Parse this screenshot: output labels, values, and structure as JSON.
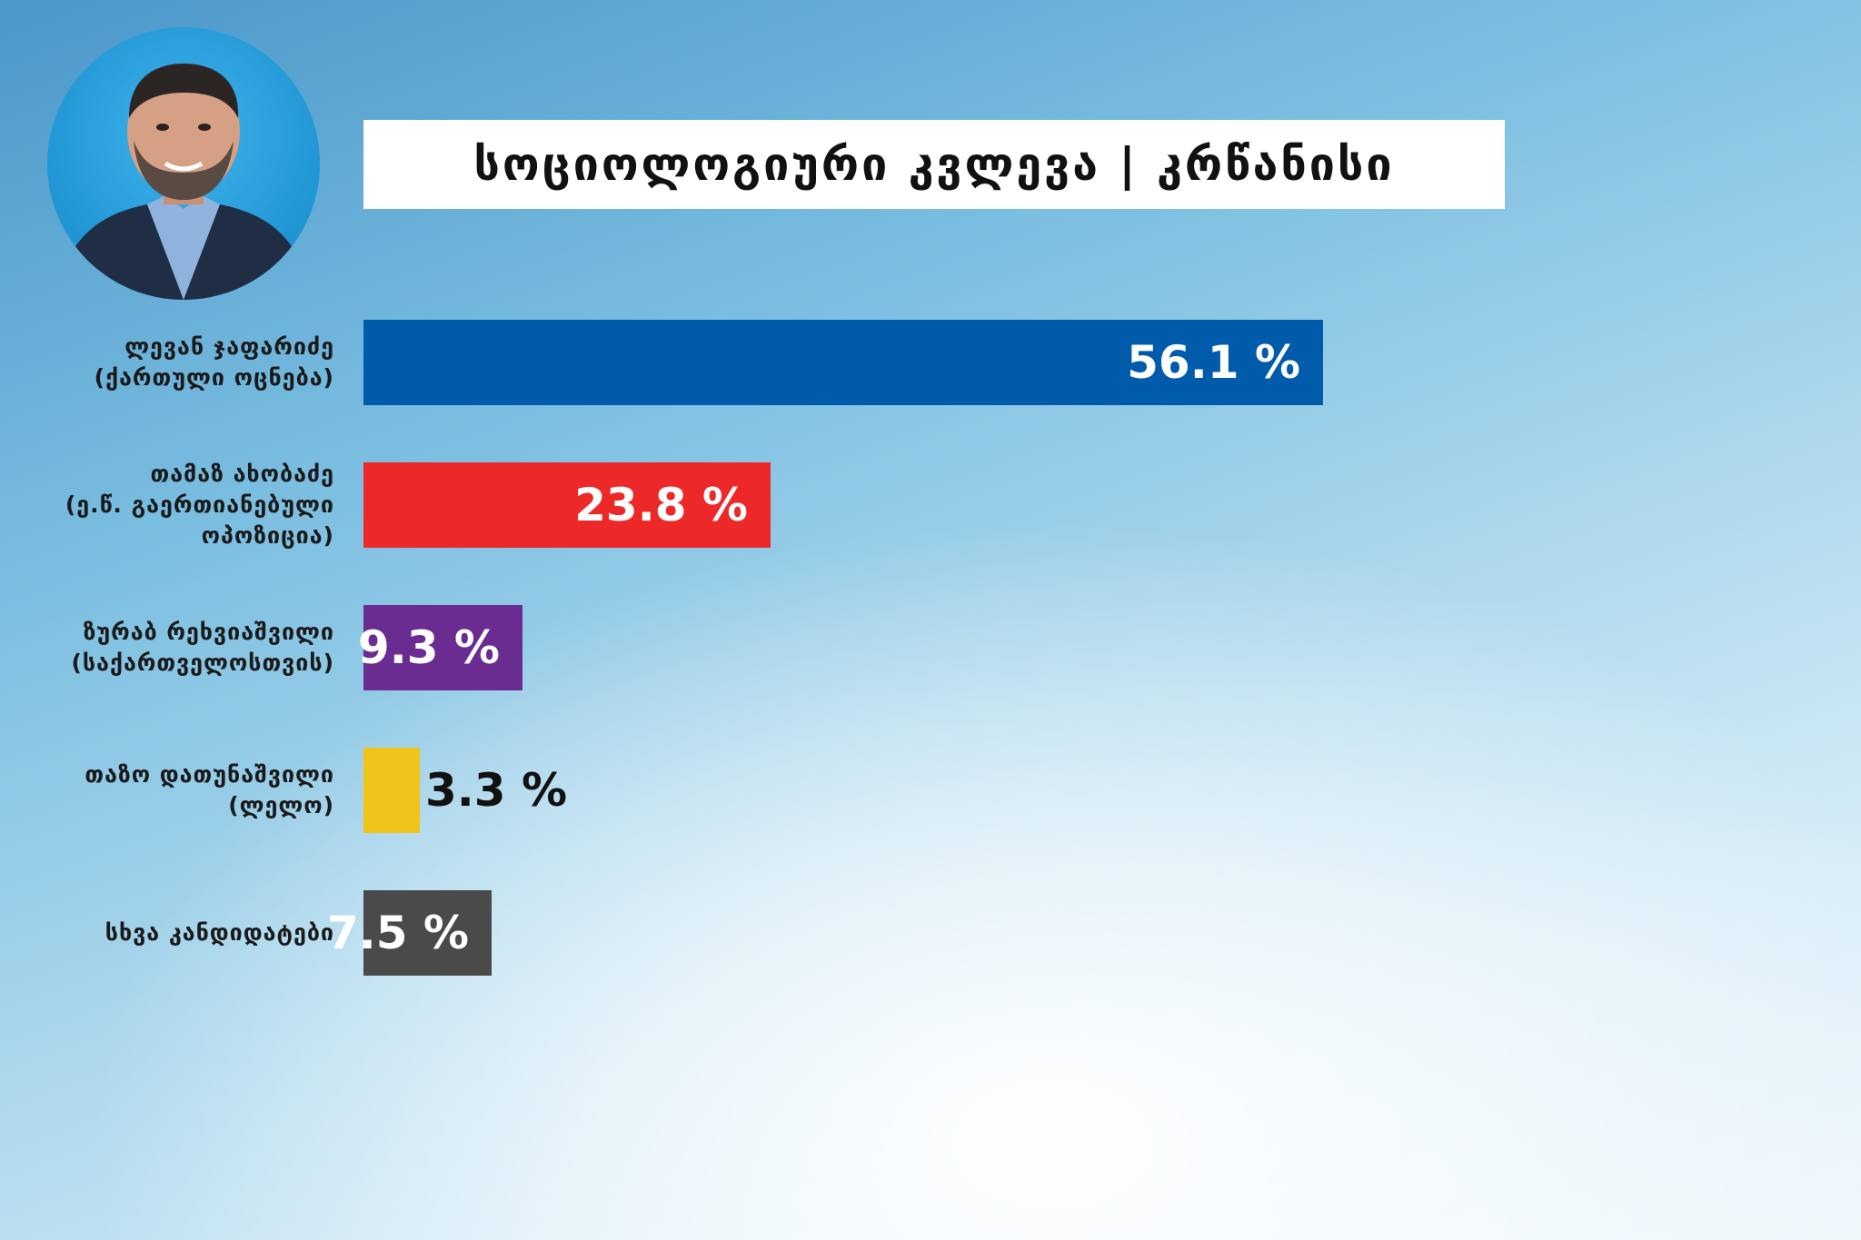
{
  "header": {
    "title": "სოციოლოგიური კვლევა | კრწანისი"
  },
  "photo": {
    "description_icon": "person-photo"
  },
  "chart_data": {
    "type": "bar",
    "orientation": "horizontal",
    "title": "სოციოლოგიური კვლევა | კრწანისი",
    "xlim": [
      0,
      56.1
    ],
    "unit": "%",
    "categories": [
      [
        "ლევან ჯაფარიძე",
        "(ქართული ოცნება)"
      ],
      [
        "თამაზ ახობაძე",
        "(ე.წ. გაერთიანებული",
        "ოპოზიცია)"
      ],
      [
        "ზურაბ რეხვიაშვილი",
        "(საქართველოსთვის)"
      ],
      [
        "თაზო დათუნაშვილი",
        "(ლელო)"
      ],
      [
        "სხვა კანდიდატები"
      ]
    ],
    "values": [
      56.1,
      23.8,
      9.3,
      3.3,
      7.5
    ],
    "value_labels": [
      "56.1 %",
      "23.8 %",
      "9.3 %",
      "3.3 %",
      "7.5 %"
    ],
    "colors": [
      "#005bab",
      "#ec2828",
      "#6b2c91",
      "#f0c418",
      "#4a4a4a"
    ],
    "label_colors": [
      "#ffffff",
      "#ffffff",
      "#ffffff",
      "#111111",
      "#ffffff"
    ],
    "label_position": [
      "inside",
      "inside",
      "inside",
      "outside",
      "inside"
    ],
    "grid": false,
    "legend": "none"
  }
}
